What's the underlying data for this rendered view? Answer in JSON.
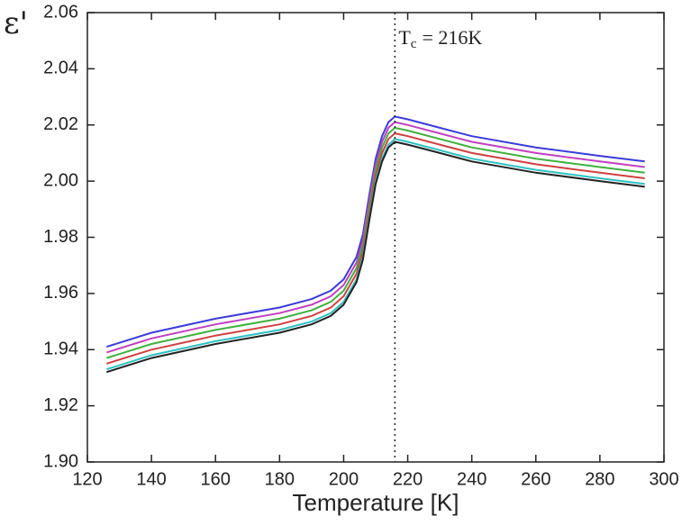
{
  "chart_data": {
    "type": "line",
    "x_label": "Temperature [K]",
    "y_label": "ε'",
    "annotation": {
      "x": 216,
      "text": "T",
      "subscript": "c",
      "text_after": "= 216K"
    },
    "x": [
      126,
      140,
      160,
      180,
      190,
      196,
      200,
      204,
      206,
      208,
      210,
      212,
      214,
      216,
      220,
      230,
      240,
      260,
      280,
      294
    ],
    "series": [
      {
        "color": "#3b3bd9",
        "values": [
          1.941,
          1.946,
          1.951,
          1.955,
          1.958,
          1.961,
          1.965,
          1.973,
          1.981,
          1.995,
          2.008,
          2.016,
          2.021,
          2.023,
          2.022,
          2.019,
          2.016,
          2.012,
          2.009,
          2.007
        ]
      },
      {
        "color": "#c040c0",
        "values": [
          1.939,
          1.944,
          1.949,
          1.953,
          1.956,
          1.959,
          1.963,
          1.971,
          1.979,
          1.993,
          2.006,
          2.014,
          2.019,
          2.021,
          2.02,
          2.017,
          2.014,
          2.01,
          2.007,
          2.005
        ]
      },
      {
        "color": "#40b040",
        "values": [
          1.937,
          1.942,
          1.947,
          1.951,
          1.954,
          1.957,
          1.961,
          1.969,
          1.977,
          1.991,
          2.004,
          2.012,
          2.017,
          2.019,
          2.018,
          2.015,
          2.012,
          2.008,
          2.005,
          2.003
        ]
      },
      {
        "color": "#d04040",
        "values": [
          1.935,
          1.94,
          1.945,
          1.949,
          1.952,
          1.955,
          1.959,
          1.967,
          1.975,
          1.989,
          2.002,
          2.01,
          2.015,
          2.017,
          2.016,
          2.013,
          2.01,
          2.006,
          2.003,
          2.001
        ]
      },
      {
        "color": "#30c0c0",
        "values": [
          1.933,
          1.938,
          1.943,
          1.947,
          1.95,
          1.953,
          1.957,
          1.965,
          1.973,
          1.987,
          2.0,
          2.008,
          2.013,
          2.015,
          2.014,
          2.011,
          2.008,
          2.004,
          2.001,
          1.999
        ]
      },
      {
        "color": "#222222",
        "values": [
          1.932,
          1.937,
          1.942,
          1.946,
          1.949,
          1.952,
          1.956,
          1.964,
          1.972,
          1.986,
          1.999,
          2.007,
          2.012,
          2.014,
          2.013,
          2.01,
          2.007,
          2.003,
          2.0,
          1.998
        ]
      }
    ],
    "xlim": [
      120,
      300
    ],
    "xticks": [
      120,
      140,
      160,
      180,
      200,
      220,
      240,
      260,
      280,
      300
    ],
    "ylim": [
      1.9,
      2.06
    ],
    "yticks": [
      {
        "value": 1.9,
        "label": "1.90"
      },
      1.92,
      1.94,
      1.96,
      1.98,
      {
        "value": 2,
        "label": "2.00"
      },
      2.02,
      2.04,
      2.06
    ]
  }
}
